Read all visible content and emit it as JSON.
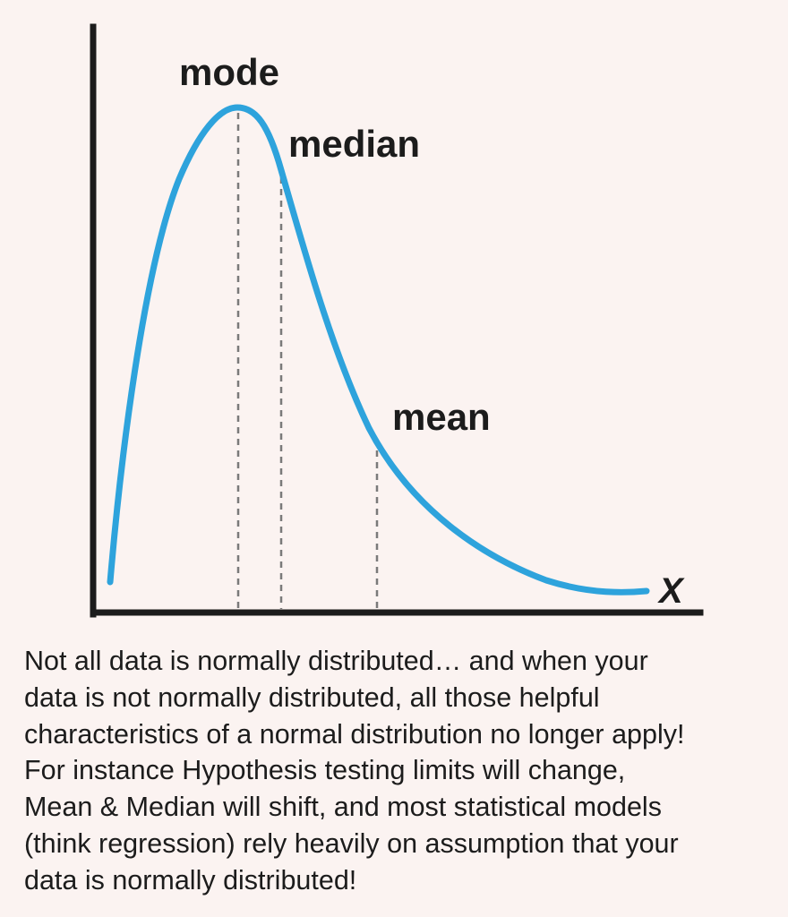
{
  "diagram": {
    "labels": {
      "mode": "mode",
      "median": "median",
      "mean": "mean",
      "x_axis": "X"
    },
    "colors": {
      "curve": "#2ea3dc",
      "axis": "#1c1c1c",
      "marker": "#7a7a7a",
      "background": "#fbf3f1"
    }
  },
  "caption": {
    "lines": [
      "Not all data is normally distributed… and when your",
      "data is not normally distributed, all those helpful",
      "characteristics of a normal distribution no longer apply!",
      "For instance Hypothesis testing limits will change,",
      "Mean & Median will shift, and most statistical models",
      "(think regression) rely heavily on assumption that your",
      "data is normally distributed!"
    ]
  }
}
